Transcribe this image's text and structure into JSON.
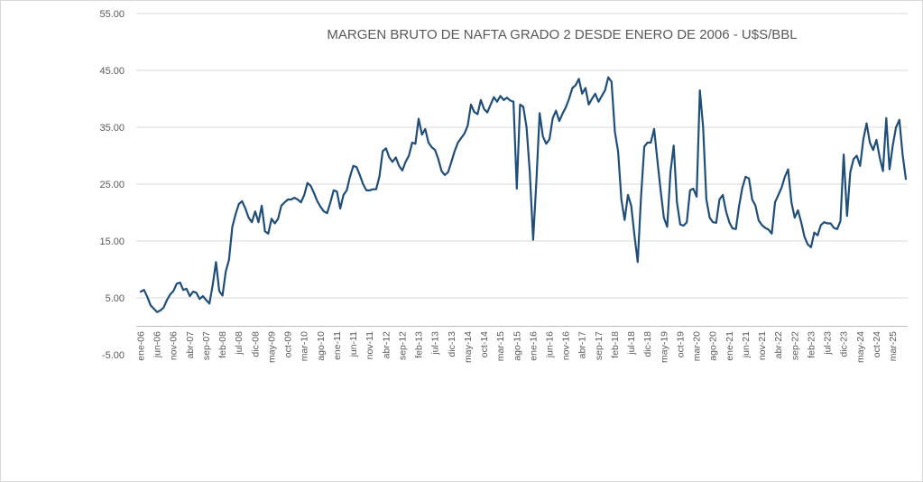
{
  "chart": {
    "title": "MARGEN BRUTO DE NAFTA GRADO 2 DESDE ENERO DE 2006 - U$S/BBL"
  },
  "chart_data": {
    "type": "line",
    "title": "MARGEN BRUTO DE NAFTA GRADO 2 DESDE ENERO DE 2006 - U$S/BBL",
    "series_name": "Margen bruto de nafta grado 2 (U$S/BBL)",
    "start_month": "ene-06",
    "end_month": "jul-25",
    "x_tick_interval_months": 5,
    "x_tick_labels": [
      "ene-06",
      "jun-06",
      "nov-06",
      "abr-07",
      "sep-07",
      "feb-08",
      "jul-08",
      "dic-08",
      "may-09",
      "oct-09",
      "mar-10",
      "ago-10",
      "ene-11",
      "jun-11",
      "nov-11",
      "abr-12",
      "sep-12",
      "feb-13",
      "jul-13",
      "dic-13",
      "may-14",
      "oct-14",
      "mar-15",
      "ago-15",
      "ene-16",
      "jun-16",
      "nov-16",
      "abr-17",
      "sep-17",
      "feb-18",
      "jul-18",
      "dic-18",
      "may-19",
      "oct-19",
      "mar-20",
      "ago-20",
      "ene-21",
      "jun-21",
      "nov-21",
      "abr-22",
      "sep-22",
      "feb-23",
      "jul-23",
      "dic-23",
      "may-24",
      "oct-24",
      "mar-25"
    ],
    "y_ticks": [
      55,
      45,
      35,
      25,
      15,
      5,
      -5
    ],
    "y_tick_labels": [
      "55.00",
      "45.00",
      "35.00",
      "25.00",
      "15.00",
      "5.00",
      "-5.00"
    ],
    "ylim": [
      -5,
      55
    ],
    "grid": true,
    "legend": "none",
    "line_color": "#1F4E79",
    "grid_color": "#D9D9D9",
    "axis_line_color": "#BFBFBF",
    "text_color": "#595959",
    "values": [
      6.1,
      6.4,
      5.2,
      3.7,
      3.1,
      2.5,
      2.8,
      3.3,
      4.6,
      5.6,
      6.2,
      7.5,
      7.7,
      6.4,
      6.6,
      5.3,
      6.1,
      5.9,
      4.8,
      5.3,
      4.6,
      4.0,
      7.2,
      11.3,
      6.2,
      5.4,
      9.6,
      11.7,
      17.5,
      19.7,
      21.5,
      22.0,
      20.7,
      19.1,
      18.3,
      20.2,
      18.3,
      21.2,
      16.7,
      16.3,
      18.9,
      18.1,
      18.9,
      21.2,
      21.8,
      22.3,
      22.3,
      22.6,
      22.3,
      21.8,
      23.1,
      25.2,
      24.7,
      23.4,
      22.0,
      21.0,
      20.2,
      19.9,
      21.8,
      23.9,
      23.7,
      20.7,
      23.1,
      23.9,
      26.3,
      28.2,
      28.0,
      26.6,
      25.0,
      23.9,
      23.9,
      24.1,
      24.1,
      26.3,
      30.8,
      31.3,
      29.7,
      28.9,
      29.7,
      28.2,
      27.4,
      28.9,
      30.0,
      32.3,
      32.1,
      36.5,
      33.7,
      34.7,
      32.3,
      31.5,
      31.0,
      29.4,
      27.3,
      26.6,
      27.1,
      28.9,
      30.8,
      32.3,
      33.1,
      33.9,
      35.3,
      39.0,
      37.7,
      37.3,
      39.8,
      38.2,
      37.6,
      39.0,
      40.3,
      39.5,
      40.5,
      39.8,
      40.2,
      39.7,
      39.5,
      24.2,
      39.0,
      38.6,
      35.0,
      27.1,
      15.2,
      25.5,
      37.5,
      33.4,
      32.1,
      32.9,
      36.6,
      37.9,
      36.1,
      37.4,
      38.5,
      40.0,
      41.9,
      42.4,
      43.5,
      40.9,
      41.9,
      39.0,
      40.0,
      40.9,
      39.5,
      40.5,
      41.5,
      43.8,
      43.0,
      34.2,
      30.7,
      22.3,
      18.7,
      23.1,
      21.2,
      16.0,
      11.3,
      22.8,
      31.6,
      32.3,
      32.3,
      34.7,
      29.2,
      23.9,
      19.1,
      17.5,
      27.1,
      31.8,
      21.8,
      17.9,
      17.7,
      18.3,
      23.9,
      24.2,
      22.8,
      41.5,
      35.0,
      22.3,
      19.1,
      18.3,
      18.2,
      22.3,
      23.1,
      20.2,
      18.3,
      17.2,
      17.1,
      21.2,
      24.4,
      26.3,
      26.0,
      22.3,
      21.2,
      18.6,
      17.8,
      17.3,
      17.0,
      16.3,
      21.8,
      23.1,
      24.4,
      26.3,
      27.6,
      21.8,
      19.1,
      20.4,
      18.3,
      15.7,
      14.4,
      13.9,
      16.5,
      16.0,
      17.8,
      18.3,
      18.1,
      18.1,
      17.3,
      17.1,
      18.5,
      30.2,
      19.4,
      27.1,
      29.4,
      30.0,
      28.2,
      32.9,
      35.7,
      32.3,
      31.0,
      32.8,
      29.7,
      27.3,
      36.6,
      27.6,
      31.8,
      35.0,
      36.3,
      30.2,
      25.9
    ]
  }
}
